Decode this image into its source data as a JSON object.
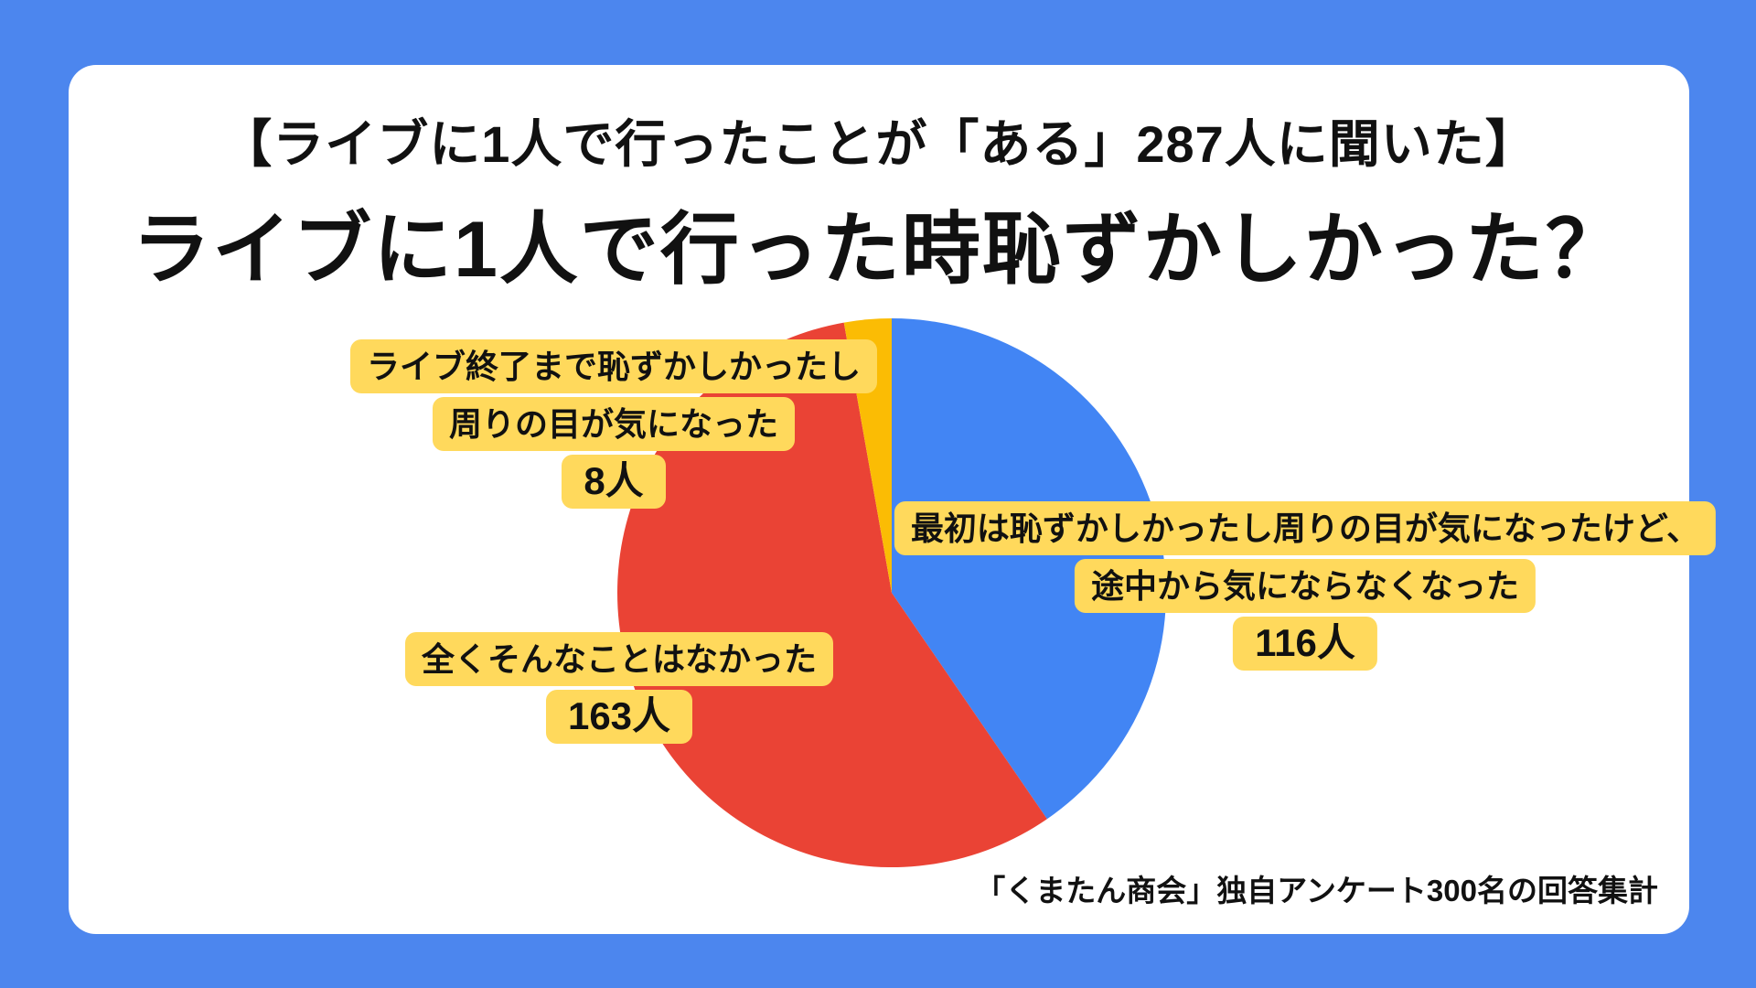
{
  "page": {
    "background_color": "#4C86EE",
    "card_color": "#FFFFFF"
  },
  "header": {
    "subtitle": "【ライブに1人で行ったことが「ある」287人に聞いた】",
    "title": "ライブに1人で行った時恥ずかしかった？"
  },
  "footer": {
    "source": "「くまたん商会」独自アンケート300名の回答集計"
  },
  "chart_data": {
    "type": "pie",
    "title": "ライブに1人で行った時恥ずかしかった？",
    "subtitle": "【ライブに1人で行ったことが「ある」287人に聞いた】",
    "total": 287,
    "units": "人",
    "start_angle_deg": 0,
    "direction": "clockwise",
    "legend_position": "none",
    "labels_style": "yellow-callout-boxes",
    "callout_bg_color": "#FFD95C",
    "slices": [
      {
        "name": "途中から気にならなくなった",
        "value": 116,
        "color": "#4285F4",
        "label_lines": [
          "最初は恥ずかしかったし周りの目が気になったけど、",
          "途中から気にならなくなった"
        ],
        "count_label": "116人"
      },
      {
        "name": "全くそんなことはなかった",
        "value": 163,
        "color": "#EA4335",
        "label_lines": [
          "全くそんなことはなかった"
        ],
        "count_label": "163人"
      },
      {
        "name": "ライブ終了まで恥ずかしかった",
        "value": 8,
        "color": "#FBBC04",
        "label_lines": [
          "ライブ終了まで恥ずかしかったし",
          "周りの目が気になった"
        ],
        "count_label": "8人"
      }
    ]
  }
}
